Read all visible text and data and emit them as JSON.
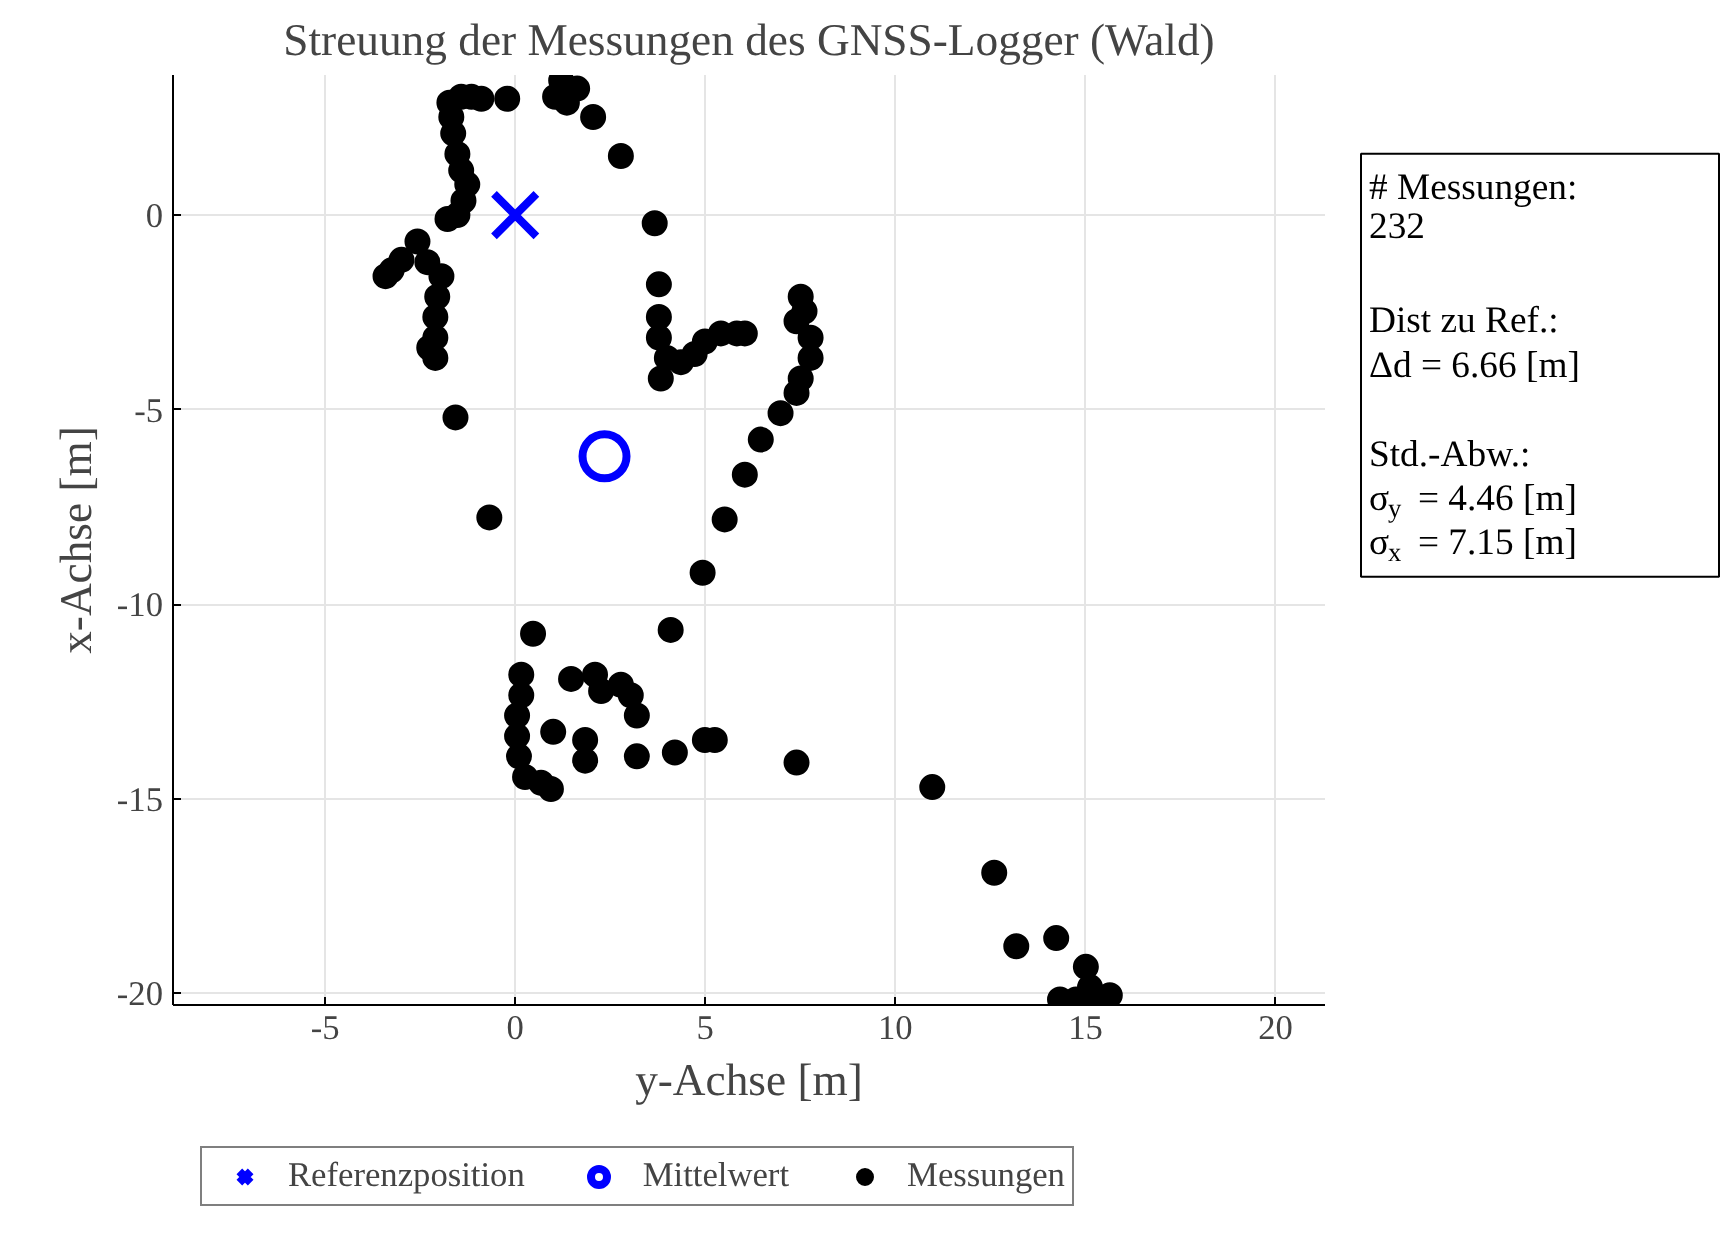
{
  "chart_data": {
    "type": "scatter",
    "title": "Streuung der Messungen des GNSS-Logger (Wald)",
    "xlabel": "y-Achse [m]",
    "ylabel": "x-Achse [m]",
    "xlim": [
      -9,
      21.3
    ],
    "ylim": [
      -20.3,
      3.6
    ],
    "xticks": [
      -5,
      0,
      5,
      10,
      15,
      20
    ],
    "yticks": [
      -20,
      -15,
      -10,
      -5,
      0
    ],
    "grid": true,
    "legend": "bottom",
    "annotations": [
      "# Messungen:\n232\n\nDist zu Ref.:\nΔd = 6.66 [m]\n\nStd.-Abw.:\nσ$_{y}$ = 4.46 [m]\nσ$_{x}$ = 7.15 [m]"
    ],
    "series": [
      {
        "name": "Referenzposition",
        "color": "#0000ff",
        "marker": "cross",
        "x": [
          0
        ],
        "values": [
          0
        ]
      },
      {
        "name": "Mittelwert",
        "color": "#0000ff",
        "marker": "circle",
        "x": [
          2.35
        ],
        "values": [
          -6.2
        ]
      },
      {
        "name": "Messungen",
        "color": "#000000",
        "marker": "circle",
        "x": [
          -3.25,
          -3.41,
          -2.99,
          -2.57,
          -2.31,
          -1.94,
          -2.05,
          -2.1,
          -2.1,
          -2.26,
          -2.1,
          -1.78,
          -1.52,
          -1.36,
          -1.26,
          -1.42,
          -1.52,
          -1.63,
          -1.68,
          -1.73,
          -1.42,
          -1.15,
          -0.89,
          -0.21,
          1.21,
          1.63,
          1.05,
          1.36,
          2.05,
          2.78,
          3.67,
          3.78,
          3.78,
          3.78,
          3.99,
          3.83,
          4.36,
          4.72,
          4.99,
          5.41,
          5.83,
          6.04,
          7.51,
          7.61,
          7.4,
          7.77,
          7.77,
          7.51,
          7.4,
          6.98,
          6.46,
          6.04,
          5.51,
          4.93,
          -0.68,
          -1.57,
          0.47,
          4.09,
          0.16,
          0.16,
          0.05,
          0.05,
          0.1,
          0.26,
          0.68,
          0.94,
          1.47,
          2.1,
          2.26,
          2.78,
          3.04,
          3.2,
          3.2,
          1.84,
          1.84,
          4.2,
          4.99,
          5.25,
          7.4,
          10.97,
          12.6,
          13.18,
          14.23,
          15.01,
          15.12,
          15.38,
          14.33,
          14.75,
          15.64,
          1.0
        ],
        "values": [
          -1.42,
          -1.57,
          -1.15,
          -0.68,
          -1.21,
          -1.57,
          -2.1,
          -2.62,
          -3.15,
          -3.41,
          -3.67,
          -0.1,
          0.0,
          0.37,
          0.79,
          1.15,
          1.57,
          2.1,
          2.52,
          2.89,
          3.04,
          3.04,
          2.99,
          2.99,
          3.46,
          3.25,
          3.04,
          2.89,
          2.52,
          1.52,
          -0.21,
          -1.78,
          -2.62,
          -3.15,
          -3.67,
          -4.2,
          -3.78,
          -3.57,
          -3.25,
          -3.04,
          -3.04,
          -3.04,
          -2.1,
          -2.47,
          -2.73,
          -3.15,
          -3.67,
          -4.2,
          -4.57,
          -5.09,
          -5.77,
          -6.67,
          -7.82,
          -9.19,
          -7.77,
          -5.2,
          -10.76,
          -10.66,
          -11.81,
          -12.34,
          -12.86,
          -13.39,
          -13.91,
          -14.44,
          -14.59,
          -14.75,
          -11.92,
          -11.81,
          -12.23,
          -12.07,
          -12.34,
          -12.86,
          -13.91,
          -13.49,
          -14.02,
          -13.81,
          -13.49,
          -13.49,
          -14.07,
          -14.7,
          -16.9,
          -18.79,
          -18.58,
          -19.32,
          -19.84,
          -20.16,
          -20.16,
          -20.16,
          -20.05,
          -13.28
        ]
      }
    ]
  }
}
